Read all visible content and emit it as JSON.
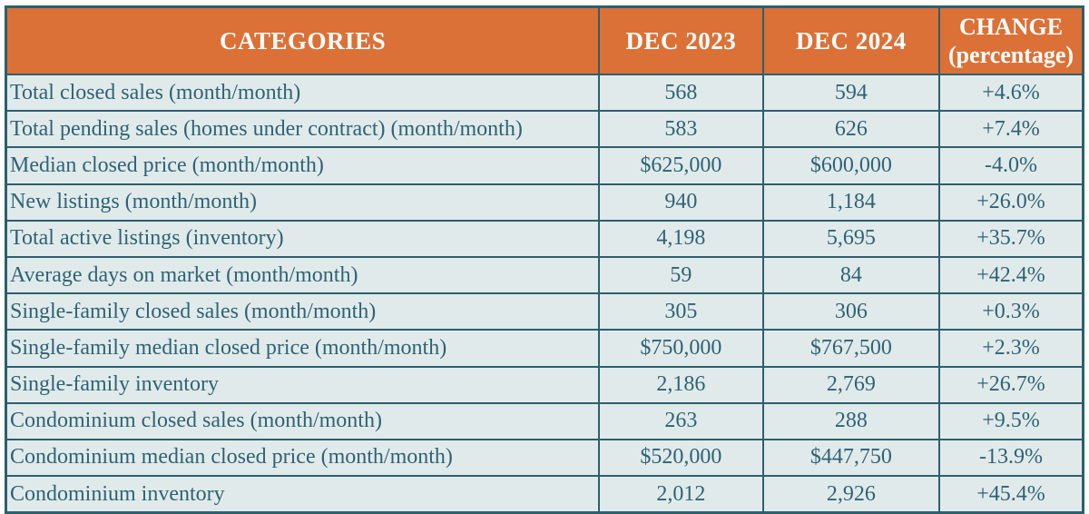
{
  "colors": {
    "header_bg": "#db7137",
    "header_text": "#ffffff",
    "body_bg": "#e1eaeb",
    "text_teal": "#2e6374",
    "border_teal": "#2c5f6e"
  },
  "chart_data": {
    "type": "table",
    "title": "",
    "columns": [
      "CATEGORIES",
      "DEC 2023",
      "DEC 2024",
      "CHANGE (percentage)"
    ],
    "header": {
      "categories": "CATEGORIES",
      "dec2023": "DEC 2023",
      "dec2024": "DEC 2024",
      "change_line1": "CHANGE",
      "change_line2": "(percentage)"
    },
    "rows": [
      {
        "category": "Total closed sales (month/month)",
        "dec2023": "568",
        "dec2024": "594",
        "change": "+4.6%"
      },
      {
        "category": "Total pending sales (homes under contract) (month/month)",
        "dec2023": "583",
        "dec2024": "626",
        "change": "+7.4%"
      },
      {
        "category": "Median closed price (month/month)",
        "dec2023": "$625,000",
        "dec2024": "$600,000",
        "change": "-4.0%"
      },
      {
        "category": "New listings (month/month)",
        "dec2023": "940",
        "dec2024": "1,184",
        "change": "+26.0%"
      },
      {
        "category": "Total active listings (inventory)",
        "dec2023": "4,198",
        "dec2024": "5,695",
        "change": "+35.7%"
      },
      {
        "category": "Average days on market (month/month)",
        "dec2023": "59",
        "dec2024": "84",
        "change": "+42.4%"
      },
      {
        "category": "Single-family closed sales (month/month)",
        "dec2023": "305",
        "dec2024": "306",
        "change": "+0.3%"
      },
      {
        "category": "Single-family median closed price (month/month)",
        "dec2023": "$750,000",
        "dec2024": "$767,500",
        "change": "+2.3%"
      },
      {
        "category": "Single-family inventory",
        "dec2023": "2,186",
        "dec2024": "2,769",
        "change": "+26.7%"
      },
      {
        "category": "Condominium closed sales (month/month)",
        "dec2023": "263",
        "dec2024": "288",
        "change": "+9.5%"
      },
      {
        "category": "Condominium median closed price (month/month)",
        "dec2023": "$520,000",
        "dec2024": "$447,750",
        "change": "-13.9%"
      },
      {
        "category": "Condominium inventory",
        "dec2023": "2,012",
        "dec2024": "2,926",
        "change": "+45.4%"
      }
    ]
  }
}
